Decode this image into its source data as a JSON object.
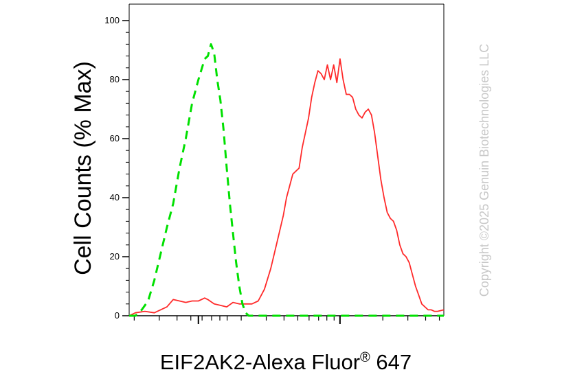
{
  "chart_data": {
    "type": "line",
    "xlabel": "EIF2AK2-Alexa Fluor",
    "xlabel_superscript": "®",
    "xlabel_suffix": " 647",
    "ylabel": "Cell Counts (% Max)",
    "ylim": [
      0,
      100
    ],
    "yticks": [
      "0",
      "20",
      "40",
      "60",
      "80",
      "100"
    ],
    "xscale": "log",
    "xlim": [
      0,
      1
    ],
    "grid": false,
    "legend": "none",
    "series": [
      {
        "color": "#ff2a2a",
        "style": "solid",
        "x": [
          0.0,
          0.02,
          0.05,
          0.08,
          0.12,
          0.14,
          0.16,
          0.18,
          0.2,
          0.22,
          0.24,
          0.25,
          0.27,
          0.29,
          0.31,
          0.33,
          0.35,
          0.37,
          0.39,
          0.41,
          0.43,
          0.45,
          0.47,
          0.49,
          0.5,
          0.52,
          0.53,
          0.54,
          0.55,
          0.56,
          0.57,
          0.58,
          0.59,
          0.6,
          0.61,
          0.62,
          0.63,
          0.64,
          0.65,
          0.66,
          0.67,
          0.68,
          0.69,
          0.7,
          0.71,
          0.72,
          0.73,
          0.74,
          0.75,
          0.76,
          0.77,
          0.78,
          0.79,
          0.8,
          0.81,
          0.82,
          0.83,
          0.84,
          0.85,
          0.86,
          0.87,
          0.88,
          0.89,
          0.9,
          0.91,
          0.92,
          0.93,
          0.94,
          0.95,
          0.96,
          0.97,
          0.98,
          1.0
        ],
        "y": [
          0,
          1,
          1.5,
          1,
          3,
          5.5,
          5,
          4.5,
          5,
          5,
          6,
          5.5,
          4,
          3.5,
          3,
          4.5,
          4,
          4,
          4,
          5,
          9,
          16,
          25,
          34,
          40,
          48,
          49,
          50,
          57,
          62,
          67,
          74,
          79,
          83,
          82,
          80,
          85,
          80,
          85,
          79,
          87,
          80,
          75,
          75,
          74,
          70,
          68,
          67,
          69,
          70,
          68,
          62,
          54,
          46,
          40,
          35,
          33,
          32,
          29,
          24,
          21,
          20,
          18,
          14,
          10,
          7,
          4,
          3,
          2,
          2,
          1.5,
          1.5,
          2
        ]
      },
      {
        "color": "#00e000",
        "style": "dashed",
        "x": [
          0.0,
          0.02,
          0.04,
          0.06,
          0.08,
          0.1,
          0.12,
          0.14,
          0.16,
          0.18,
          0.2,
          0.22,
          0.24,
          0.25,
          0.26,
          0.27,
          0.28,
          0.29,
          0.3,
          0.31,
          0.32,
          0.33,
          0.34,
          0.35,
          0.36,
          0.37,
          0.38,
          0.39,
          0.4,
          0.42,
          0.45,
          0.5,
          0.6,
          0.7,
          0.8,
          0.9,
          1.0
        ],
        "y": [
          0,
          0,
          2,
          5,
          12,
          21,
          30,
          38,
          50,
          60,
          72,
          80,
          87,
          88,
          92,
          89,
          80,
          73,
          63,
          50,
          38,
          28,
          18,
          10,
          4,
          1,
          0,
          0,
          0,
          0,
          0,
          0,
          0,
          0,
          0,
          0,
          0
        ]
      }
    ]
  },
  "watermark": "Copyright ©2025 Genuin Biotechnologies LLC"
}
